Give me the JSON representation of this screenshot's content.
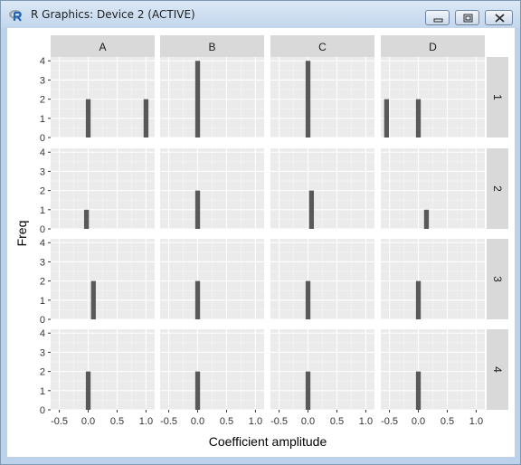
{
  "window": {
    "title": "R Graphics: Device 2 (ACTIVE)"
  },
  "chart_data": {
    "type": "bar",
    "layout": "facet_grid",
    "xlabel": "Coefficient amplitude",
    "ylabel": "Freq",
    "xlim": [
      -0.65,
      1.15
    ],
    "ylim": [
      0,
      4.2
    ],
    "x_ticks": [
      -0.5,
      0,
      0.5,
      1
    ],
    "x_tick_labels": [
      "-0.5",
      "0.0",
      "0.5",
      "1.0"
    ],
    "y_ticks": [
      0,
      1,
      2,
      3,
      4
    ],
    "y_tick_labels": [
      "0",
      "1",
      "2",
      "3",
      "4"
    ],
    "bar_width": 0.083,
    "grid": true,
    "bar_color": "#595959",
    "panel_background": "#ebebeb",
    "strip_background": "#d9d9d9",
    "columns": [
      "A",
      "B",
      "C",
      "D"
    ],
    "rows": [
      "1",
      "2",
      "3",
      "4"
    ],
    "panels": [
      {
        "col": "A",
        "row": "1",
        "bars": [
          {
            "x": 0.0,
            "freq": 2
          },
          {
            "x": 1.0,
            "freq": 2
          }
        ]
      },
      {
        "col": "B",
        "row": "1",
        "bars": [
          {
            "x": 0.0,
            "freq": 4
          }
        ]
      },
      {
        "col": "C",
        "row": "1",
        "bars": [
          {
            "x": 0.0,
            "freq": 4
          }
        ]
      },
      {
        "col": "D",
        "row": "1",
        "bars": [
          {
            "x": -0.55,
            "freq": 2
          },
          {
            "x": 0.0,
            "freq": 2
          }
        ]
      },
      {
        "col": "A",
        "row": "2",
        "bars": [
          {
            "x": -0.03,
            "freq": 1
          }
        ]
      },
      {
        "col": "B",
        "row": "2",
        "bars": [
          {
            "x": 0.0,
            "freq": 2
          }
        ]
      },
      {
        "col": "C",
        "row": "2",
        "bars": [
          {
            "x": 0.06,
            "freq": 2
          }
        ]
      },
      {
        "col": "D",
        "row": "2",
        "bars": [
          {
            "x": 0.14,
            "freq": 1
          }
        ]
      },
      {
        "col": "A",
        "row": "3",
        "bars": [
          {
            "x": 0.09,
            "freq": 2
          }
        ]
      },
      {
        "col": "B",
        "row": "3",
        "bars": [
          {
            "x": 0.0,
            "freq": 2
          }
        ]
      },
      {
        "col": "C",
        "row": "3",
        "bars": [
          {
            "x": 0.0,
            "freq": 2
          }
        ]
      },
      {
        "col": "D",
        "row": "3",
        "bars": [
          {
            "x": 0.0,
            "freq": 2
          }
        ]
      },
      {
        "col": "A",
        "row": "4",
        "bars": [
          {
            "x": 0.0,
            "freq": 2
          }
        ]
      },
      {
        "col": "B",
        "row": "4",
        "bars": [
          {
            "x": 0.0,
            "freq": 2
          }
        ]
      },
      {
        "col": "C",
        "row": "4",
        "bars": [
          {
            "x": 0.0,
            "freq": 2
          }
        ]
      },
      {
        "col": "D",
        "row": "4",
        "bars": [
          {
            "x": 0.0,
            "freq": 2
          }
        ]
      }
    ]
  }
}
